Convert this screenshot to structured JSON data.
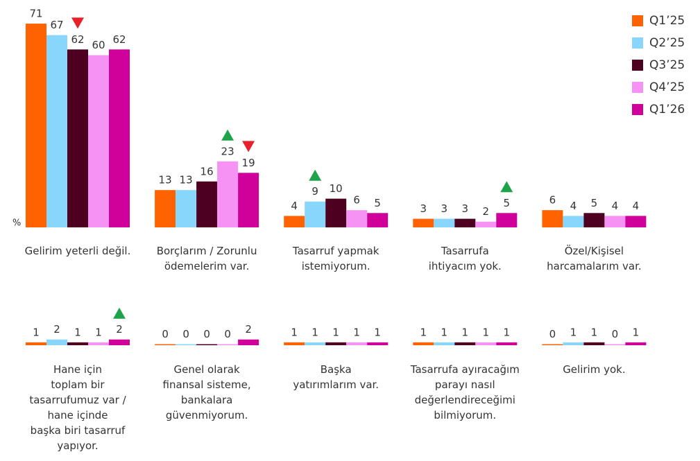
{
  "chart_data": {
    "type": "bar",
    "unit_label": "%",
    "categories": [
      [
        "Gelirim yeterli değil."
      ],
      [
        "Borçlarım / Zorunlu",
        "ödemelerim var."
      ],
      [
        "Tasarruf yapmak",
        "istemiyorum."
      ],
      [
        "Tasarrufa",
        "ihtiyacım yok."
      ],
      [
        "Özel/Kişisel",
        "harcamalarım var."
      ],
      [
        "Hane için",
        "toplam bir",
        "tasarrufumuz var /",
        "hane içinde",
        "başka biri tasarruf",
        "yapıyor."
      ],
      [
        "Genel olarak",
        "finansal sisteme,",
        "bankalara",
        "güvenmiyorum."
      ],
      [
        "Başka",
        "yatırımlarım var."
      ],
      [
        "Tasarrufa ayıracağım",
        "parayı nasıl",
        "değerlendireceğimi",
        "bilmiyorum."
      ],
      [
        "Gelirim yok."
      ]
    ],
    "series": [
      {
        "name": "Q1’25",
        "color": "#ff6200",
        "values": [
          71,
          13,
          4,
          3,
          6,
          1,
          0,
          1,
          1,
          0
        ],
        "changes": [
          null,
          null,
          null,
          null,
          null,
          null,
          null,
          null,
          null,
          null
        ]
      },
      {
        "name": "Q2’25",
        "color": "#89d6fd",
        "values": [
          67,
          13,
          9,
          3,
          4,
          2,
          0,
          1,
          1,
          1
        ],
        "changes": [
          null,
          null,
          "up",
          null,
          null,
          null,
          null,
          null,
          null,
          null
        ]
      },
      {
        "name": "Q3’25",
        "color": "#4d0020",
        "values": [
          62,
          16,
          10,
          3,
          5,
          1,
          0,
          1,
          1,
          1
        ],
        "changes": [
          "down",
          null,
          null,
          null,
          null,
          null,
          null,
          null,
          null,
          null
        ]
      },
      {
        "name": "Q4’25",
        "color": "#f592f3",
        "values": [
          60,
          23,
          6,
          2,
          4,
          1,
          0,
          1,
          1,
          0
        ],
        "changes": [
          null,
          "up",
          null,
          null,
          null,
          null,
          null,
          null,
          null,
          null
        ]
      },
      {
        "name": "Q1’26",
        "color": "#d0009a",
        "values": [
          62,
          19,
          5,
          5,
          4,
          2,
          2,
          1,
          1,
          1
        ],
        "changes": [
          null,
          "down",
          null,
          "up",
          null,
          "up",
          null,
          null,
          null,
          null
        ]
      }
    ],
    "change_colors": {
      "up": "#1fa34a",
      "down": "#e8202a"
    },
    "legend": "top-right"
  }
}
